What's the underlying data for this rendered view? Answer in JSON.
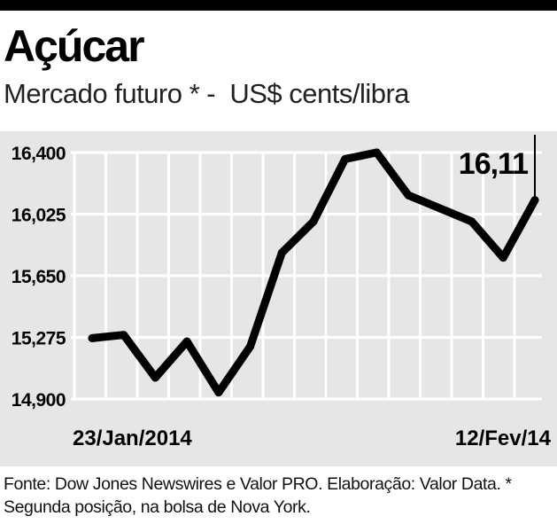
{
  "header": {
    "title": "Açúcar",
    "subtitle": "Mercado futuro * -  US$ cents/libra"
  },
  "chart_data": {
    "type": "line",
    "title": "Açúcar",
    "subtitle": "Mercado futuro * -  US$ cents/libra",
    "y_ticks": [
      {
        "value": 16.4,
        "label": "16,400"
      },
      {
        "value": 16.025,
        "label": "16,025"
      },
      {
        "value": 15.65,
        "label": "15,650"
      },
      {
        "value": 15.275,
        "label": "15,275"
      },
      {
        "value": 14.9,
        "label": "14,900"
      }
    ],
    "ylim": [
      14.9,
      16.4
    ],
    "x_labels": {
      "start": "23/Jan/2014",
      "end": "12/Fev/14"
    },
    "grid": true,
    "series": [
      {
        "values": [
          15.27,
          15.29,
          15.03,
          15.25,
          14.94,
          15.22,
          15.79,
          15.98,
          16.36,
          16.4,
          16.14,
          16.06,
          15.98,
          15.76,
          16.11
        ]
      }
    ],
    "annotation": {
      "label": "16,11",
      "value": 16.11
    }
  },
  "footnote": "Fonte: Dow Jones Newswires e Valor PRO. Elaboração: Valor Data. * Segunda posição, na bolsa de Nova York.",
  "colors": {
    "line": "#000000",
    "panel": "#e6e6e6",
    "grid": "#ffffff"
  }
}
